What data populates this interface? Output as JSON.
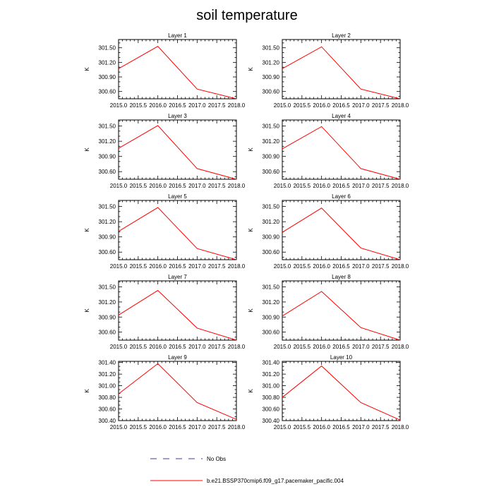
{
  "title": "soil temperature",
  "colors": {
    "model": "#ff0000",
    "obs": "#3d3d9e",
    "axis": "#000000"
  },
  "legend": {
    "obs_label": "No Obs",
    "model_label": "b.e21.BSSP370cmip6.f09_g17.pacemaker_pacific.004"
  },
  "chart_data": [
    {
      "type": "line",
      "title": "Layer 1",
      "ylabel": "K",
      "x": [
        2015,
        2016,
        2017,
        2018
      ],
      "xlim": [
        2015,
        2018
      ],
      "xticks": [
        2015.0,
        2015.5,
        2016.0,
        2016.5,
        2017.0,
        2017.5,
        2018.0
      ],
      "xtick_labels": [
        "2015.0",
        "2015.5",
        "2016.0",
        "2016.5",
        "2017.0",
        "2017.5",
        "2018.0"
      ],
      "ylim": [
        300.45,
        301.67
      ],
      "yticks": [
        300.6,
        300.9,
        301.2,
        301.5
      ],
      "ytick_labels": [
        "300.60",
        "300.90",
        "301.20",
        "301.50"
      ],
      "series": [
        {
          "name": "b.e21.BSSP370cmip6.f09_g17.pacemaker_pacific.004",
          "values": [
            301.07,
            301.53,
            300.65,
            300.45
          ]
        }
      ]
    },
    {
      "type": "line",
      "title": "Layer 2",
      "ylabel": "K",
      "x": [
        2015,
        2016,
        2017,
        2018
      ],
      "xlim": [
        2015,
        2018
      ],
      "xticks": [
        2015.0,
        2015.5,
        2016.0,
        2016.5,
        2017.0,
        2017.5,
        2018.0
      ],
      "xtick_labels": [
        "2015.0",
        "2015.5",
        "2016.0",
        "2016.5",
        "2017.0",
        "2017.5",
        "2018.0"
      ],
      "ylim": [
        300.45,
        301.67
      ],
      "yticks": [
        300.6,
        300.9,
        301.2,
        301.5
      ],
      "ytick_labels": [
        "300.60",
        "300.90",
        "301.20",
        "301.50"
      ],
      "series": [
        {
          "name": "b.e21.BSSP370cmip6.f09_g17.pacemaker_pacific.004",
          "values": [
            301.07,
            301.52,
            300.65,
            300.45
          ]
        }
      ]
    },
    {
      "type": "line",
      "title": "Layer 3",
      "ylabel": "K",
      "x": [
        2015,
        2016,
        2017,
        2018
      ],
      "xlim": [
        2015,
        2018
      ],
      "xticks": [
        2015.0,
        2015.5,
        2016.0,
        2016.5,
        2017.0,
        2017.5,
        2018.0
      ],
      "xtick_labels": [
        "2015.0",
        "2015.5",
        "2016.0",
        "2016.5",
        "2017.0",
        "2017.5",
        "2018.0"
      ],
      "ylim": [
        300.45,
        301.62
      ],
      "yticks": [
        300.6,
        300.9,
        301.2,
        301.5
      ],
      "ytick_labels": [
        "300.60",
        "300.90",
        "301.20",
        "301.50"
      ],
      "series": [
        {
          "name": "b.e21.BSSP370cmip6.f09_g17.pacemaker_pacific.004",
          "values": [
            301.06,
            301.51,
            300.66,
            300.45
          ]
        }
      ]
    },
    {
      "type": "line",
      "title": "Layer 4",
      "ylabel": "K",
      "x": [
        2015,
        2016,
        2017,
        2018
      ],
      "xlim": [
        2015,
        2018
      ],
      "xticks": [
        2015.0,
        2015.5,
        2016.0,
        2016.5,
        2017.0,
        2017.5,
        2018.0
      ],
      "xtick_labels": [
        "2015.0",
        "2015.5",
        "2016.0",
        "2016.5",
        "2017.0",
        "2017.5",
        "2018.0"
      ],
      "ylim": [
        300.45,
        301.62
      ],
      "yticks": [
        300.6,
        300.9,
        301.2,
        301.5
      ],
      "ytick_labels": [
        "300.60",
        "300.90",
        "301.20",
        "301.50"
      ],
      "series": [
        {
          "name": "b.e21.BSSP370cmip6.f09_g17.pacemaker_pacific.004",
          "values": [
            301.05,
            301.49,
            300.66,
            300.45
          ]
        }
      ]
    },
    {
      "type": "line",
      "title": "Layer 5",
      "ylabel": "K",
      "x": [
        2015,
        2016,
        2017,
        2018
      ],
      "xlim": [
        2015,
        2018
      ],
      "xticks": [
        2015.0,
        2015.5,
        2016.0,
        2016.5,
        2017.0,
        2017.5,
        2018.0
      ],
      "xtick_labels": [
        "2015.0",
        "2015.5",
        "2016.0",
        "2016.5",
        "2017.0",
        "2017.5",
        "2018.0"
      ],
      "ylim": [
        300.45,
        301.62
      ],
      "yticks": [
        300.6,
        300.9,
        301.2,
        301.5
      ],
      "ytick_labels": [
        "300.60",
        "300.90",
        "301.20",
        "301.50"
      ],
      "series": [
        {
          "name": "b.e21.BSSP370cmip6.f09_g17.pacemaker_pacific.004",
          "values": [
            301.01,
            301.48,
            300.67,
            300.45
          ]
        }
      ]
    },
    {
      "type": "line",
      "title": "Layer 6",
      "ylabel": "K",
      "x": [
        2015,
        2016,
        2017,
        2018
      ],
      "xlim": [
        2015,
        2018
      ],
      "xticks": [
        2015.0,
        2015.5,
        2016.0,
        2016.5,
        2017.0,
        2017.5,
        2018.0
      ],
      "xtick_labels": [
        "2015.0",
        "2015.5",
        "2016.0",
        "2016.5",
        "2017.0",
        "2017.5",
        "2018.0"
      ],
      "ylim": [
        300.45,
        301.62
      ],
      "yticks": [
        300.6,
        300.9,
        301.2,
        301.5
      ],
      "ytick_labels": [
        "300.60",
        "300.90",
        "301.20",
        "301.50"
      ],
      "series": [
        {
          "name": "b.e21.BSSP370cmip6.f09_g17.pacemaker_pacific.004",
          "values": [
            300.99,
            301.47,
            300.68,
            300.45
          ]
        }
      ]
    },
    {
      "type": "line",
      "title": "Layer 7",
      "ylabel": "K",
      "x": [
        2015,
        2016,
        2017,
        2018
      ],
      "xlim": [
        2015,
        2018
      ],
      "xticks": [
        2015.0,
        2015.5,
        2016.0,
        2016.5,
        2017.0,
        2017.5,
        2018.0
      ],
      "xtick_labels": [
        "2015.0",
        "2015.5",
        "2016.0",
        "2016.5",
        "2017.0",
        "2017.5",
        "2018.0"
      ],
      "ylim": [
        300.44,
        301.62
      ],
      "yticks": [
        300.6,
        300.9,
        301.2,
        301.5
      ],
      "ytick_labels": [
        "300.60",
        "300.90",
        "301.20",
        "301.50"
      ],
      "series": [
        {
          "name": "b.e21.BSSP370cmip6.f09_g17.pacemaker_pacific.004",
          "values": [
            300.94,
            301.43,
            300.68,
            300.44
          ]
        }
      ]
    },
    {
      "type": "line",
      "title": "Layer 8",
      "ylabel": "K",
      "x": [
        2015,
        2016,
        2017,
        2018
      ],
      "xlim": [
        2015,
        2018
      ],
      "xticks": [
        2015.0,
        2015.5,
        2016.0,
        2016.5,
        2017.0,
        2017.5,
        2018.0
      ],
      "xtick_labels": [
        "2015.0",
        "2015.5",
        "2016.0",
        "2016.5",
        "2017.0",
        "2017.5",
        "2018.0"
      ],
      "ylim": [
        300.44,
        301.62
      ],
      "yticks": [
        300.6,
        300.9,
        301.2,
        301.5
      ],
      "ytick_labels": [
        "300.60",
        "300.90",
        "301.20",
        "301.50"
      ],
      "series": [
        {
          "name": "b.e21.BSSP370cmip6.f09_g17.pacemaker_pacific.004",
          "values": [
            300.92,
            301.41,
            300.69,
            300.44
          ]
        }
      ]
    },
    {
      "type": "line",
      "title": "Layer 9",
      "ylabel": "K",
      "x": [
        2015,
        2016,
        2017,
        2018
      ],
      "xlim": [
        2015,
        2018
      ],
      "xticks": [
        2015.0,
        2015.5,
        2016.0,
        2016.5,
        2017.0,
        2017.5,
        2018.0
      ],
      "xtick_labels": [
        "2015.0",
        "2015.5",
        "2016.0",
        "2016.5",
        "2017.0",
        "2017.5",
        "2018.0"
      ],
      "ylim": [
        300.4,
        301.42
      ],
      "yticks": [
        300.4,
        300.6,
        300.8,
        301.0,
        301.2,
        301.4
      ],
      "ytick_labels": [
        "300.40",
        "300.60",
        "300.80",
        "301.00",
        "301.20",
        "301.40"
      ],
      "series": [
        {
          "name": "b.e21.BSSP370cmip6.f09_g17.pacemaker_pacific.004",
          "values": [
            300.86,
            301.38,
            300.71,
            300.42
          ]
        }
      ]
    },
    {
      "type": "line",
      "title": "Layer 10",
      "ylabel": "K",
      "x": [
        2015,
        2016,
        2017,
        2018
      ],
      "xlim": [
        2015,
        2018
      ],
      "xticks": [
        2015.0,
        2015.5,
        2016.0,
        2016.5,
        2017.0,
        2017.5,
        2018.0
      ],
      "xtick_labels": [
        "2015.0",
        "2015.5",
        "2016.0",
        "2016.5",
        "2017.0",
        "2017.5",
        "2018.0"
      ],
      "ylim": [
        300.4,
        301.42
      ],
      "yticks": [
        300.4,
        300.6,
        300.8,
        301.0,
        301.2,
        301.4
      ],
      "ytick_labels": [
        "300.40",
        "300.60",
        "300.80",
        "301.00",
        "301.20",
        "301.40"
      ],
      "series": [
        {
          "name": "b.e21.BSSP370cmip6.f09_g17.pacemaker_pacific.004",
          "values": [
            300.8,
            301.34,
            300.71,
            300.41
          ]
        }
      ]
    }
  ]
}
